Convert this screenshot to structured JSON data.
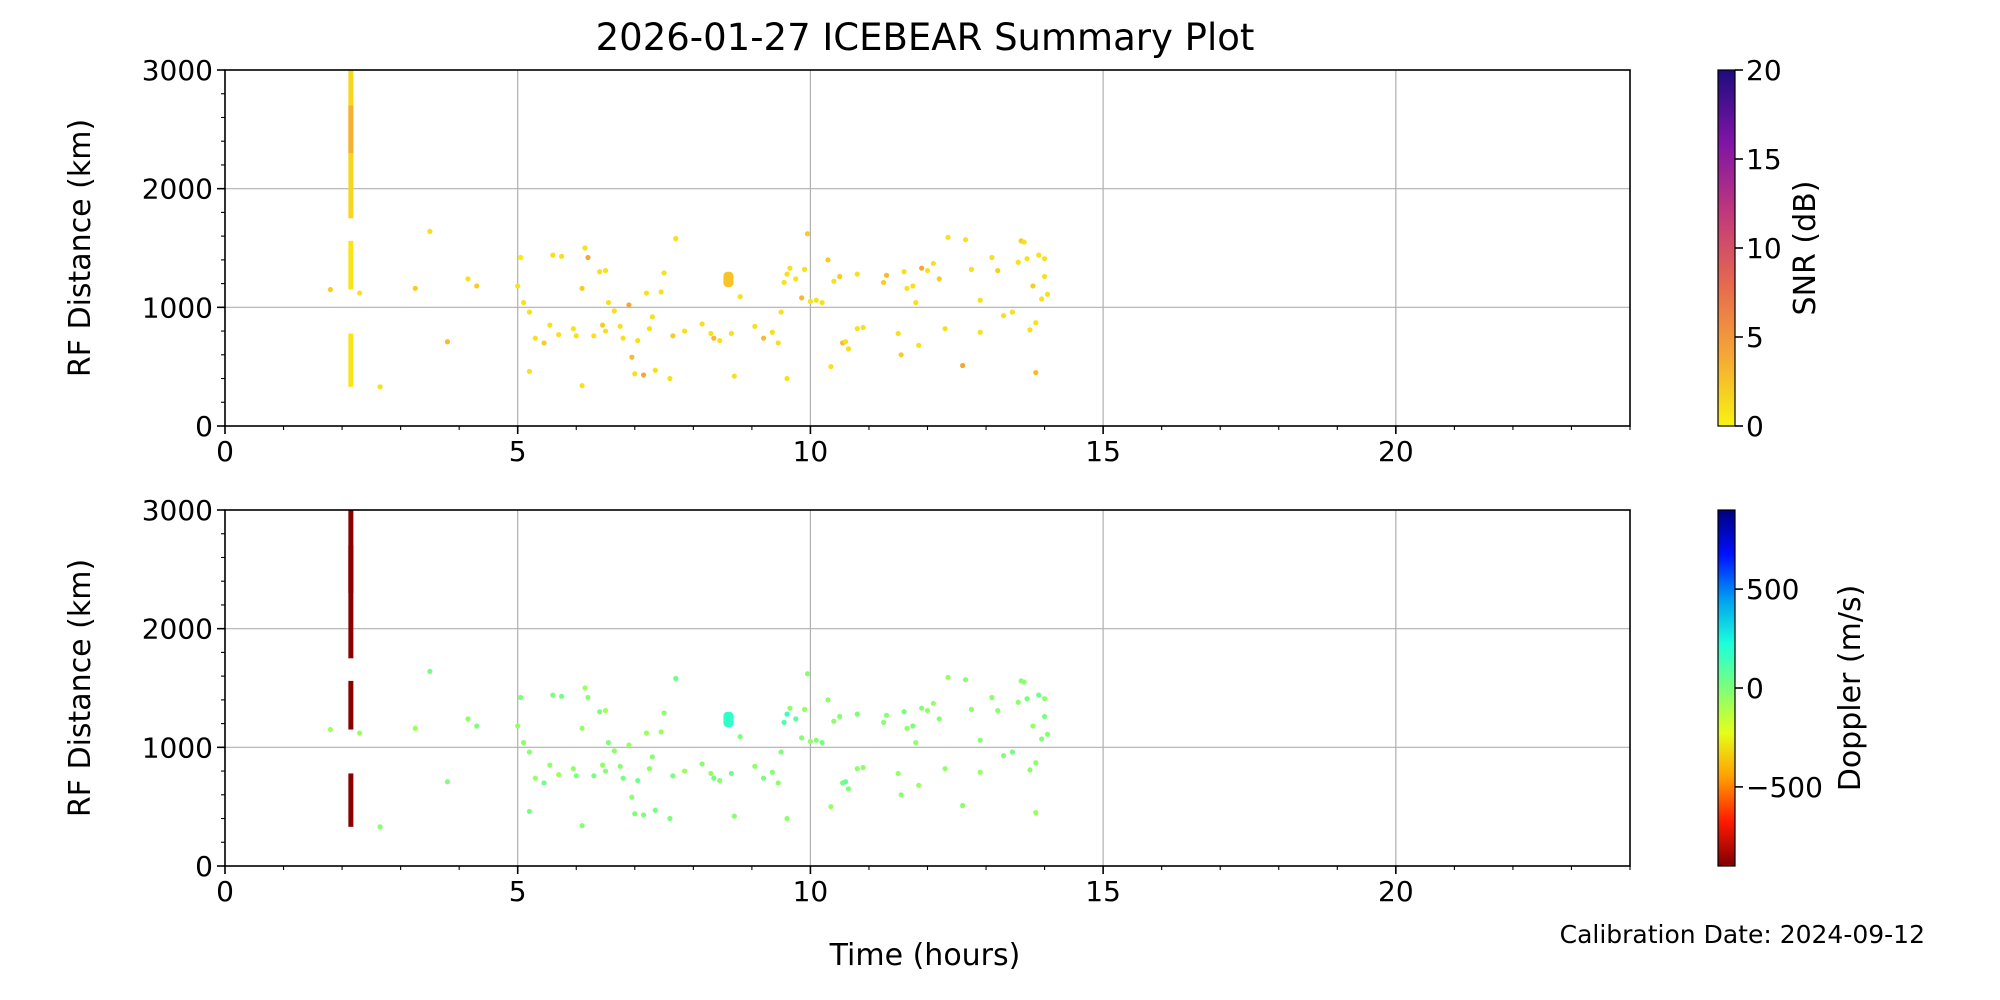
{
  "chart_data": {
    "type": "scatter",
    "title": "2026-01-27 ICEBEAR Summary Plot",
    "xlabel": "Time (hours)",
    "xlim": [
      0,
      24
    ],
    "x_ticks": [
      0,
      5,
      10,
      15,
      20
    ],
    "calibration_text": "Calibration Date: 2024-09-12",
    "panels": [
      {
        "name": "snr-panel",
        "ylabel": "RF Distance (km)",
        "ylim": [
          0,
          3000
        ],
        "y_ticks": [
          0,
          1000,
          2000,
          3000
        ],
        "grid": true,
        "colorbar": {
          "label": "SNR (dB)",
          "range": [
            0,
            20
          ],
          "ticks": [
            0,
            5,
            10,
            15,
            20
          ],
          "colormap": [
            "#f8f312",
            "#f6a636",
            "#e6684f",
            "#c0387c",
            "#7e14a6",
            "#1d0c7f"
          ]
        }
      },
      {
        "name": "doppler-panel",
        "ylabel": "RF Distance (km)",
        "ylim": [
          0,
          3000
        ],
        "y_ticks": [
          0,
          1000,
          2000,
          3000
        ],
        "grid": true,
        "colorbar": {
          "label": "Doppler (m/s)",
          "range": [
            -900,
            900
          ],
          "ticks": [
            -500,
            0,
            500
          ],
          "tick_labels": [
            "−500",
            "0",
            "500"
          ],
          "colormap": [
            "#7f0000",
            "#ff1a00",
            "#ff9f00",
            "#e4ff1a",
            "#7dff7a",
            "#1cffdb",
            "#009ff0",
            "#0010ff",
            "#00007f"
          ]
        }
      }
    ],
    "vertical_bursts": [
      {
        "x": 2.15,
        "y_range": [
          1750,
          3000
        ],
        "snr": 1.5,
        "doppler": -880
      },
      {
        "x": 2.15,
        "y_range": [
          1150,
          1560
        ],
        "snr": 0.8,
        "doppler": -880
      },
      {
        "x": 2.15,
        "y_range": [
          330,
          780
        ],
        "snr": 0.8,
        "doppler": -880
      },
      {
        "x": 2.15,
        "y_range": [
          2300,
          2700
        ],
        "snr": 3.5,
        "doppler": -880
      }
    ],
    "cluster": {
      "x": 8.6,
      "y_range": [
        1170,
        1300
      ],
      "snr": 2.5,
      "doppler": 180
    },
    "points": [
      [
        1.8,
        1150,
        2,
        -80
      ],
      [
        2.3,
        1120,
        1,
        -60
      ],
      [
        2.65,
        330,
        1,
        -20
      ],
      [
        3.25,
        1160,
        2,
        -60
      ],
      [
        3.5,
        1640,
        1,
        20
      ],
      [
        3.8,
        710,
        3,
        -10
      ],
      [
        4.15,
        1240,
        1,
        -40
      ],
      [
        4.3,
        1180,
        2,
        0
      ],
      [
        5.0,
        1180,
        1,
        -50
      ],
      [
        5.05,
        1420,
        0.5,
        0
      ],
      [
        5.1,
        1040,
        1,
        -40
      ],
      [
        5.2,
        960,
        1,
        -20
      ],
      [
        5.2,
        460,
        1,
        20
      ],
      [
        5.3,
        740,
        1,
        -60
      ],
      [
        5.45,
        700,
        2,
        40
      ],
      [
        5.55,
        850,
        1,
        -40
      ],
      [
        5.6,
        1440,
        1,
        0
      ],
      [
        5.7,
        770,
        1,
        -70
      ],
      [
        5.75,
        1430,
        1,
        20
      ],
      [
        5.95,
        820,
        1,
        -40
      ],
      [
        6.0,
        760,
        1,
        0
      ],
      [
        6.1,
        1160,
        2,
        -60
      ],
      [
        6.1,
        340,
        1,
        -20
      ],
      [
        6.15,
        1500,
        1,
        -70
      ],
      [
        6.2,
        1420,
        4,
        -30
      ],
      [
        6.3,
        760,
        1,
        20
      ],
      [
        6.4,
        1300,
        1,
        10
      ],
      [
        6.45,
        850,
        2,
        -50
      ],
      [
        6.5,
        800,
        1,
        -20
      ],
      [
        6.5,
        1310,
        1,
        -80
      ],
      [
        6.55,
        1040,
        1,
        0
      ],
      [
        6.65,
        970,
        1,
        -40
      ],
      [
        6.75,
        840,
        1,
        -20
      ],
      [
        6.8,
        740,
        1,
        20
      ],
      [
        6.9,
        1020,
        4,
        -60
      ],
      [
        6.95,
        580,
        3,
        -30
      ],
      [
        7.0,
        440,
        1,
        0
      ],
      [
        7.05,
        720,
        1,
        40
      ],
      [
        7.15,
        430,
        4,
        0
      ],
      [
        7.2,
        1120,
        1,
        -60
      ],
      [
        7.25,
        820,
        1,
        -40
      ],
      [
        7.3,
        920,
        1,
        -20
      ],
      [
        7.35,
        470,
        1,
        20
      ],
      [
        7.45,
        1130,
        1,
        -60
      ],
      [
        7.5,
        1290,
        1,
        -40
      ],
      [
        7.6,
        400,
        1,
        0
      ],
      [
        7.65,
        760,
        2,
        10
      ],
      [
        7.7,
        1580,
        1,
        40
      ],
      [
        7.85,
        800,
        1,
        -60
      ],
      [
        8.15,
        860,
        1,
        -20
      ],
      [
        8.3,
        780,
        1,
        -40
      ],
      [
        8.35,
        740,
        3,
        20
      ],
      [
        8.45,
        720,
        1,
        -20
      ],
      [
        8.65,
        780,
        1,
        40
      ],
      [
        8.7,
        420,
        1,
        -20
      ],
      [
        8.8,
        1090,
        1,
        0
      ],
      [
        9.05,
        840,
        1,
        -40
      ],
      [
        9.2,
        740,
        3,
        20
      ],
      [
        9.35,
        790,
        1,
        -20
      ],
      [
        9.45,
        700,
        1,
        -40
      ],
      [
        9.5,
        960,
        1,
        0
      ],
      [
        9.55,
        1210,
        1,
        120
      ],
      [
        9.6,
        1280,
        1,
        150
      ],
      [
        9.6,
        400,
        1,
        -30
      ],
      [
        9.65,
        1330,
        1,
        -40
      ],
      [
        9.75,
        1240,
        1,
        80
      ],
      [
        9.85,
        1080,
        3,
        -20
      ],
      [
        9.9,
        1320,
        1,
        -60
      ],
      [
        9.95,
        1620,
        2,
        -20
      ],
      [
        10.0,
        1050,
        1,
        -40
      ],
      [
        10.1,
        1060,
        1,
        -10
      ],
      [
        10.2,
        1040,
        1,
        20
      ],
      [
        10.3,
        1400,
        2,
        -30
      ],
      [
        10.35,
        500,
        1,
        -60
      ],
      [
        10.4,
        1220,
        1,
        -40
      ],
      [
        10.5,
        1260,
        2,
        -20
      ],
      [
        10.55,
        700,
        3,
        20
      ],
      [
        10.6,
        710,
        1,
        60
      ],
      [
        10.65,
        650,
        1,
        -10
      ],
      [
        10.8,
        820,
        1,
        -30
      ],
      [
        10.8,
        1280,
        1,
        10
      ],
      [
        10.9,
        830,
        1,
        -40
      ],
      [
        11.25,
        1210,
        2,
        -30
      ],
      [
        11.3,
        1270,
        3,
        -20
      ],
      [
        11.5,
        780,
        1,
        -60
      ],
      [
        11.55,
        600,
        2,
        -20
      ],
      [
        11.6,
        1300,
        1,
        20
      ],
      [
        11.65,
        1160,
        1,
        -40
      ],
      [
        11.75,
        1180,
        1,
        10
      ],
      [
        11.8,
        1040,
        1,
        -50
      ],
      [
        11.85,
        680,
        1,
        -60
      ],
      [
        11.9,
        1330,
        4,
        -20
      ],
      [
        12.0,
        1310,
        1,
        -40
      ],
      [
        12.1,
        1370,
        1,
        -60
      ],
      [
        12.2,
        1240,
        2,
        -20
      ],
      [
        12.3,
        820,
        1,
        -40
      ],
      [
        12.35,
        1590,
        1,
        -60
      ],
      [
        12.6,
        510,
        4,
        -30
      ],
      [
        12.65,
        1570,
        1,
        -20
      ],
      [
        12.75,
        1320,
        1,
        -40
      ],
      [
        12.9,
        1060,
        1,
        -20
      ],
      [
        12.9,
        790,
        1,
        -60
      ],
      [
        13.1,
        1420,
        1,
        -40
      ],
      [
        13.2,
        1310,
        2,
        -20
      ],
      [
        13.3,
        930,
        1,
        -10
      ],
      [
        13.45,
        960,
        1,
        20
      ],
      [
        13.55,
        1380,
        1,
        -40
      ],
      [
        13.6,
        1560,
        2,
        -20
      ],
      [
        13.65,
        1550,
        1,
        -30
      ],
      [
        13.7,
        1410,
        1,
        20
      ],
      [
        13.8,
        1180,
        2,
        -60
      ],
      [
        13.85,
        870,
        1,
        -40
      ],
      [
        13.9,
        1440,
        1,
        40
      ],
      [
        13.95,
        1070,
        1,
        -10
      ],
      [
        14.0,
        1260,
        1,
        10
      ],
      [
        14.0,
        1410,
        1,
        -40
      ],
      [
        13.85,
        450,
        3,
        -60
      ],
      [
        14.05,
        1110,
        1,
        -20
      ],
      [
        13.75,
        810,
        1,
        -40
      ]
    ]
  }
}
